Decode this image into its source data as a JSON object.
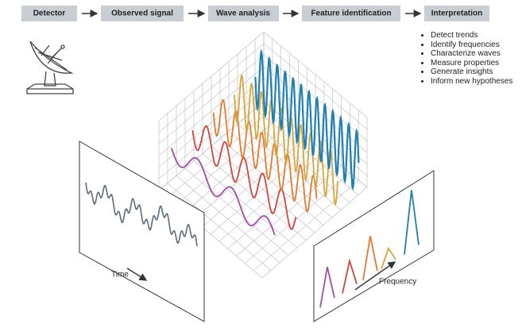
{
  "pipeline": [
    "Detector",
    "Observed signal",
    "Wave analysis",
    "Feature identification",
    "Interpretation"
  ],
  "outputs": [
    "Detect trends",
    "Identify frequencies",
    "Characterize waves",
    "Measure properties",
    "Generate insights",
    "Inform new hypotheses"
  ],
  "time_label": "Time",
  "frequency_label": "Frequency"
}
